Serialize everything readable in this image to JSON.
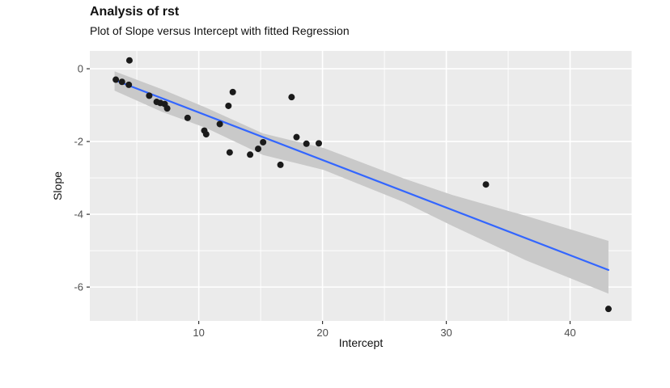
{
  "chart_data": {
    "type": "scatter",
    "title": "Analysis of rst",
    "subtitle": "Plot of Slope versus Intercept with fitted Regression",
    "xlabel": "Intercept",
    "ylabel": "Slope",
    "xlim": [
      1.2,
      45.0
    ],
    "ylim": [
      -6.93,
      0.49
    ],
    "x_ticks": [
      10,
      20,
      30,
      40
    ],
    "x_minor_ticks": [
      5,
      15,
      25,
      35,
      45
    ],
    "y_ticks": [
      0,
      -2,
      -4,
      -6
    ],
    "y_minor_ticks": [
      -1,
      -3,
      -5
    ],
    "grid": true,
    "legend": "none",
    "points": [
      [
        4.4,
        0.23
      ],
      [
        3.3,
        -0.3
      ],
      [
        3.8,
        -0.36
      ],
      [
        4.35,
        -0.44
      ],
      [
        6.0,
        -0.74
      ],
      [
        6.6,
        -0.91
      ],
      [
        6.9,
        -0.94
      ],
      [
        7.25,
        -0.97
      ],
      [
        7.45,
        -1.09
      ],
      [
        9.1,
        -1.35
      ],
      [
        10.45,
        -1.7
      ],
      [
        10.6,
        -1.8
      ],
      [
        11.7,
        -1.52
      ],
      [
        12.4,
        -1.02
      ],
      [
        12.75,
        -0.64
      ],
      [
        12.5,
        -2.3
      ],
      [
        14.15,
        -2.36
      ],
      [
        14.8,
        -2.2
      ],
      [
        15.2,
        -2.02
      ],
      [
        16.6,
        -2.64
      ],
      [
        17.5,
        -0.78
      ],
      [
        17.9,
        -1.88
      ],
      [
        18.7,
        -2.06
      ],
      [
        19.7,
        -2.05
      ],
      [
        33.2,
        -3.18
      ],
      [
        43.1,
        -6.6
      ]
    ],
    "regression_line": {
      "x1": 3.2,
      "y1": -0.31,
      "x2": 43.1,
      "y2": -5.53
    },
    "confidence_band": [
      {
        "x": 3.2,
        "hi": -0.07,
        "lo": -0.6
      },
      {
        "x": 7.0,
        "hi": -0.56,
        "lo": -1.18
      },
      {
        "x": 10.6,
        "hi": -1.07,
        "lo": -1.63
      },
      {
        "x": 15.2,
        "hi": -1.78,
        "lo": -2.37
      },
      {
        "x": 20.1,
        "hi": -2.18,
        "lo": -2.78
      },
      {
        "x": 26.6,
        "hi": -3.02,
        "lo": -3.67
      },
      {
        "x": 30.5,
        "hi": -3.47,
        "lo": -4.32
      },
      {
        "x": 36.4,
        "hi": -4.04,
        "lo": -5.26
      },
      {
        "x": 43.1,
        "hi": -4.73,
        "lo": -6.18
      }
    ],
    "colors": {
      "panel_bg": "#EBEBEB",
      "grid": "#FFFFFF",
      "band": "#C9C9C9",
      "line": "#3366FF",
      "point": "#1A1A1A",
      "tick_mark": "#333333",
      "tick_label": "#4D4D4D"
    }
  }
}
